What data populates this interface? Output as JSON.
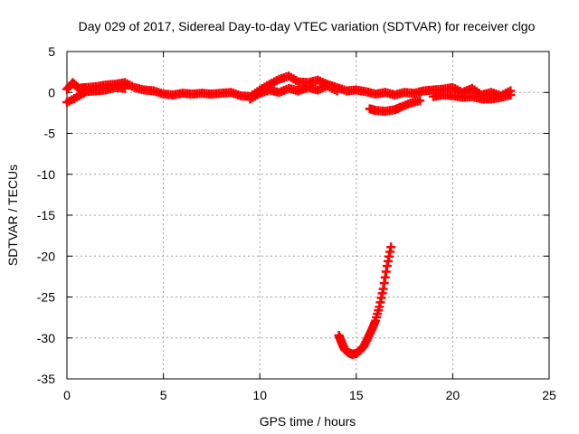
{
  "chart_data": {
    "type": "scatter",
    "title": "Day 029 of 2017, Sidereal Day-to-day VTEC variation (SDTVAR) for receiver clgo",
    "xlabel": "GPS time / hours",
    "ylabel": "SDTVAR / TECUs",
    "xlim": [
      0,
      25
    ],
    "ylim": [
      -35,
      5
    ],
    "x_ticks": [
      0,
      5,
      10,
      15,
      20,
      25
    ],
    "y_ticks": [
      5,
      0,
      -5,
      -10,
      -15,
      -20,
      -25,
      -30,
      -35
    ],
    "grid": true,
    "legend": "none",
    "series": [
      {
        "name": "SDTVAR",
        "color": "#ff0000",
        "marker": "plus",
        "points": [
          [
            0.0,
            0.4
          ],
          [
            0.3,
            1.2
          ],
          [
            0.6,
            0.5
          ],
          [
            1.0,
            0.6
          ],
          [
            1.5,
            0.7
          ],
          [
            2.0,
            0.9
          ],
          [
            2.5,
            1.0
          ],
          [
            3.0,
            1.2
          ],
          [
            3.5,
            0.6
          ],
          [
            4.0,
            0.3
          ],
          [
            4.5,
            0.2
          ],
          [
            5.0,
            -0.2
          ],
          [
            5.5,
            -0.3
          ],
          [
            6.0,
            -0.1
          ],
          [
            6.5,
            -0.2
          ],
          [
            7.0,
            -0.1
          ],
          [
            7.5,
            -0.2
          ],
          [
            8.0,
            -0.1
          ],
          [
            8.5,
            0.0
          ],
          [
            9.0,
            -0.4
          ],
          [
            9.5,
            -0.5
          ],
          [
            10.0,
            0.3
          ],
          [
            10.5,
            1.0
          ],
          [
            11.0,
            1.6
          ],
          [
            11.5,
            2.0
          ],
          [
            12.0,
            1.3
          ],
          [
            12.5,
            1.2
          ],
          [
            13.0,
            1.5
          ],
          [
            13.5,
            1.0
          ],
          [
            14.0,
            0.6
          ],
          [
            14.5,
            0.2
          ],
          [
            15.0,
            0.3
          ],
          [
            15.5,
            0.1
          ],
          [
            16.0,
            -0.2
          ],
          [
            16.5,
            0.0
          ],
          [
            17.0,
            -0.3
          ],
          [
            17.5,
            0.0
          ],
          [
            18.0,
            -0.1
          ],
          [
            18.5,
            0.2
          ],
          [
            19.0,
            0.3
          ],
          [
            19.5,
            0.4
          ],
          [
            20.0,
            0.6
          ],
          [
            20.5,
            0.0
          ],
          [
            21.0,
            0.5
          ],
          [
            21.5,
            -0.3
          ],
          [
            22.0,
            0.0
          ],
          [
            22.5,
            -0.4
          ],
          [
            23.0,
            0.2
          ],
          [
            0.0,
            -1.2
          ],
          [
            0.5,
            -0.6
          ],
          [
            1.0,
            0.1
          ],
          [
            1.5,
            0.2
          ],
          [
            2.0,
            0.3
          ],
          [
            2.5,
            0.6
          ],
          [
            3.0,
            0.5
          ],
          [
            9.5,
            -0.8
          ],
          [
            10.0,
            -0.1
          ],
          [
            10.5,
            0.3
          ],
          [
            11.0,
            0.0
          ],
          [
            11.5,
            0.5
          ],
          [
            12.0,
            0.2
          ],
          [
            12.5,
            0.6
          ],
          [
            13.0,
            0.3
          ],
          [
            13.5,
            0.8
          ],
          [
            14.0,
            0.2
          ],
          [
            15.7,
            -2.0
          ],
          [
            16.0,
            -2.2
          ],
          [
            16.5,
            -2.3
          ],
          [
            17.0,
            -2.1
          ],
          [
            17.3,
            -1.8
          ],
          [
            17.8,
            -1.3
          ],
          [
            18.3,
            -1.0
          ],
          [
            19.0,
            -0.5
          ],
          [
            19.5,
            -0.3
          ],
          [
            20.0,
            -0.4
          ],
          [
            20.5,
            -0.6
          ],
          [
            21.0,
            -0.5
          ],
          [
            21.5,
            -0.8
          ],
          [
            22.0,
            -0.8
          ],
          [
            22.5,
            -0.6
          ],
          [
            23.0,
            -0.3
          ],
          [
            14.1,
            -29.7
          ],
          [
            14.2,
            -30.3
          ],
          [
            14.3,
            -30.9
          ],
          [
            14.4,
            -31.4
          ],
          [
            14.6,
            -31.8
          ],
          [
            14.8,
            -32.0
          ],
          [
            15.0,
            -31.9
          ],
          [
            15.2,
            -31.5
          ],
          [
            15.4,
            -31.0
          ],
          [
            15.6,
            -30.0
          ],
          [
            15.8,
            -29.0
          ],
          [
            16.0,
            -27.9
          ],
          [
            16.2,
            -26.2
          ],
          [
            16.4,
            -24.0
          ],
          [
            16.6,
            -21.2
          ],
          [
            16.8,
            -18.9
          ]
        ]
      }
    ]
  }
}
